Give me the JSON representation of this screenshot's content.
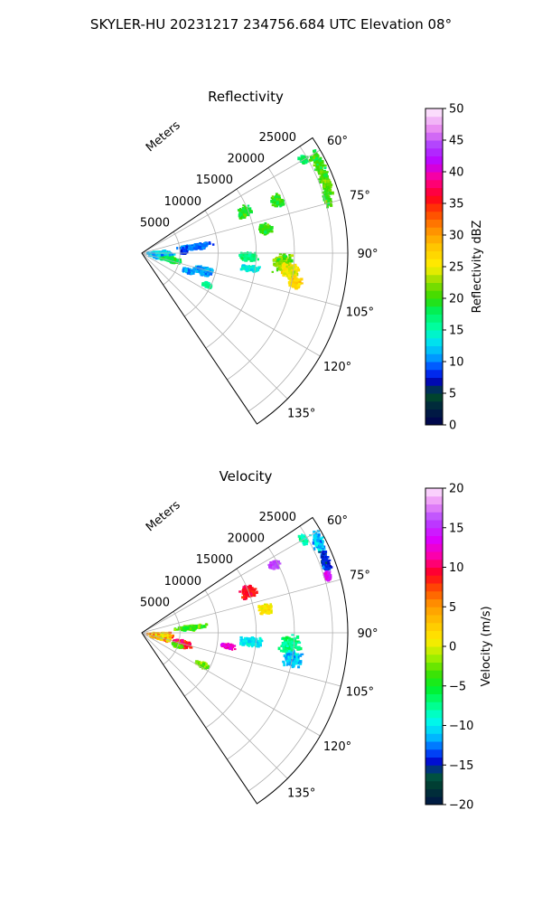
{
  "figure": {
    "suptitle": "SKYLER-HU  20231217  234756.684 UTC Elevation 08°"
  },
  "chart_data": [
    {
      "type": "heatmap",
      "projection": "polar-sector",
      "title": "Reflectivity",
      "radial_label": "Meters",
      "r_ticks": [
        5000,
        10000,
        15000,
        20000,
        25000
      ],
      "r_tick_labels": [
        "5000",
        "10000",
        "15000",
        "20000",
        "25000"
      ],
      "r_max": 27000,
      "theta_ticks": [
        60,
        75,
        90,
        105,
        120,
        135
      ],
      "theta_tick_labels": [
        "60°",
        "75°",
        "90°",
        "105°",
        "120°",
        "135°"
      ],
      "theta_range": [
        56,
        146
      ],
      "grid": true,
      "colorbar": {
        "label": "Reflectivity dBZ",
        "range": [
          0,
          50
        ],
        "ticks": [
          0,
          5,
          10,
          15,
          20,
          25,
          30,
          35,
          40,
          45,
          50
        ],
        "tick_labels": [
          "0",
          "5",
          "10",
          "15",
          "20",
          "25",
          "30",
          "35",
          "40",
          "45",
          "50"
        ]
      },
      "echoes": [
        {
          "theta": 60,
          "r": 24500,
          "dr": 600,
          "dtheta": 2,
          "value": 18,
          "spread": 3
        },
        {
          "theta": 63,
          "r": 26000,
          "dr": 900,
          "dtheta": 5,
          "value": 20,
          "spread": 4
        },
        {
          "theta": 69,
          "r": 25800,
          "dr": 800,
          "dtheta": 5,
          "value": 21,
          "spread": 4
        },
        {
          "theta": 74,
          "r": 25300,
          "dr": 600,
          "dtheta": 3,
          "value": 20,
          "spread": 4
        },
        {
          "theta": 69,
          "r": 19000,
          "dr": 1000,
          "dtheta": 3,
          "value": 20,
          "spread": 3
        },
        {
          "theta": 68,
          "r": 14500,
          "dr": 1000,
          "dtheta": 4,
          "value": 19,
          "spread": 3
        },
        {
          "theta": 79,
          "r": 16500,
          "dr": 1100,
          "dtheta": 3,
          "value": 20,
          "spread": 3
        },
        {
          "theta": 83,
          "r": 7000,
          "dr": 3000,
          "dtheta": 3,
          "value": 10,
          "spread": 3
        },
        {
          "theta": 88,
          "r": 5500,
          "dr": 500,
          "dtheta": 4,
          "value": 8,
          "spread": 2
        },
        {
          "theta": 92,
          "r": 14000,
          "dr": 1500,
          "dtheta": 3,
          "value": 17,
          "spread": 3
        },
        {
          "theta": 94,
          "r": 18500,
          "dr": 1500,
          "dtheta": 5,
          "value": 22,
          "spread": 4
        },
        {
          "theta": 97,
          "r": 19500,
          "dr": 1500,
          "dtheta": 4,
          "value": 25,
          "spread": 4
        },
        {
          "theta": 101,
          "r": 20500,
          "dr": 1000,
          "dtheta": 3,
          "value": 27,
          "spread": 3
        },
        {
          "theta": 98,
          "r": 14500,
          "dr": 1500,
          "dtheta": 2,
          "value": 14,
          "spread": 3
        },
        {
          "theta": 96,
          "r": 2500,
          "dr": 2000,
          "dtheta": 14,
          "value": 13,
          "spread": 5
        },
        {
          "theta": 103,
          "r": 4000,
          "dr": 1500,
          "dtheta": 5,
          "value": 18,
          "spread": 3
        },
        {
          "theta": 106,
          "r": 8500,
          "dr": 1500,
          "dtheta": 5,
          "value": 11,
          "spread": 3
        },
        {
          "theta": 111,
          "r": 6500,
          "dr": 1000,
          "dtheta": 3,
          "value": 11,
          "spread": 3
        },
        {
          "theta": 116,
          "r": 9500,
          "dr": 700,
          "dtheta": 2,
          "value": 16,
          "spread": 3
        }
      ]
    },
    {
      "type": "heatmap",
      "projection": "polar-sector",
      "title": "Velocity",
      "radial_label": "Meters",
      "r_ticks": [
        5000,
        10000,
        15000,
        20000,
        25000
      ],
      "r_tick_labels": [
        "5000",
        "10000",
        "15000",
        "20000",
        "25000"
      ],
      "r_max": 27000,
      "theta_ticks": [
        60,
        75,
        90,
        105,
        120,
        135
      ],
      "theta_tick_labels": [
        "60°",
        "75°",
        "90°",
        "105°",
        "120°",
        "135°"
      ],
      "theta_range": [
        56,
        146
      ],
      "grid": true,
      "colorbar": {
        "label": "Velocity (m/s)",
        "range": [
          -20,
          20
        ],
        "ticks": [
          -20,
          -15,
          -10,
          -5,
          0,
          5,
          10,
          15,
          20
        ],
        "tick_labels": [
          "−20",
          "−15",
          "−10",
          "−5",
          "0",
          "5",
          "10",
          "15",
          "20"
        ]
      },
      "echoes": [
        {
          "theta": 60,
          "r": 24500,
          "dr": 600,
          "dtheta": 2,
          "value": -8,
          "spread": 3
        },
        {
          "theta": 63,
          "r": 26000,
          "dr": 900,
          "dtheta": 4,
          "value": -11,
          "spread": 3
        },
        {
          "theta": 69,
          "r": 25800,
          "dr": 800,
          "dtheta": 4,
          "value": -14,
          "spread": 3
        },
        {
          "theta": 73,
          "r": 25500,
          "dr": 600,
          "dtheta": 2,
          "value": 14,
          "spread": 3
        },
        {
          "theta": 63,
          "r": 19500,
          "dr": 800,
          "dtheta": 2,
          "value": 16,
          "spread": 2
        },
        {
          "theta": 69,
          "r": 15000,
          "dr": 1300,
          "dtheta": 4,
          "value": 9,
          "spread": 2
        },
        {
          "theta": 79,
          "r": 16500,
          "dr": 1100,
          "dtheta": 3,
          "value": 1,
          "spread": 2
        },
        {
          "theta": 84,
          "r": 6500,
          "dr": 2500,
          "dtheta": 3,
          "value": -4,
          "spread": 4
        },
        {
          "theta": 95,
          "r": 14500,
          "dr": 2000,
          "dtheta": 3,
          "value": -10,
          "spread": 3
        },
        {
          "theta": 95,
          "r": 19500,
          "dr": 1500,
          "dtheta": 5,
          "value": -7,
          "spread": 3
        },
        {
          "theta": 100,
          "r": 20000,
          "dr": 1500,
          "dtheta": 4,
          "value": -11,
          "spread": 3
        },
        {
          "theta": 99,
          "r": 11500,
          "dr": 1200,
          "dtheta": 2,
          "value": 12,
          "spread": 3
        },
        {
          "theta": 100,
          "r": 2500,
          "dr": 2000,
          "dtheta": 12,
          "value": 3,
          "spread": 8
        },
        {
          "theta": 105,
          "r": 5500,
          "dr": 1500,
          "dtheta": 6,
          "value": 9,
          "spread": 4
        },
        {
          "theta": 110,
          "r": 5000,
          "dr": 800,
          "dtheta": 3,
          "value": -3,
          "spread": 3
        },
        {
          "theta": 118,
          "r": 9000,
          "dr": 1000,
          "dtheta": 3,
          "value": -2,
          "spread": 3
        }
      ]
    }
  ]
}
